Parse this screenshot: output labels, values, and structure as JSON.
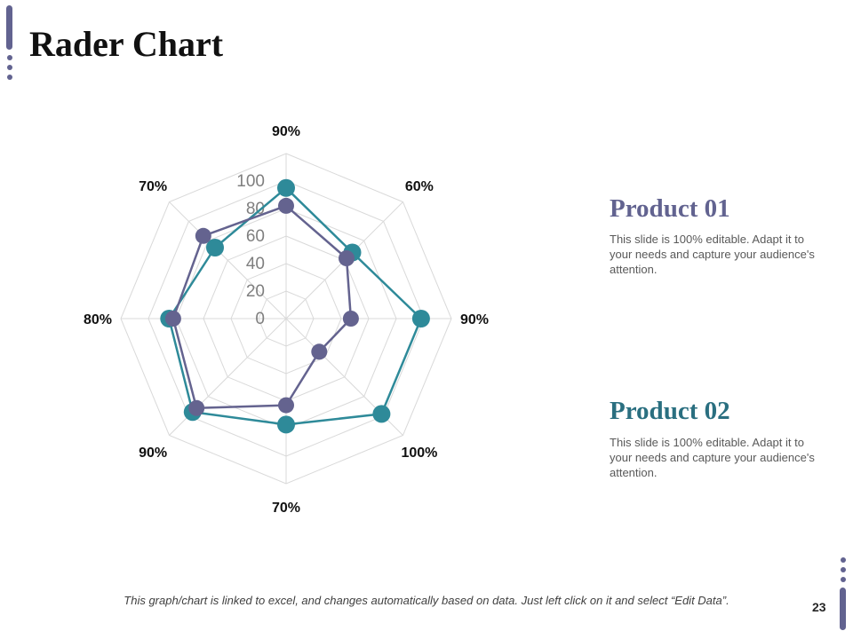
{
  "slide": {
    "title": "Rader Chart",
    "footnote": "This graph/chart is linked to excel, and changes automatically based on data. Just left click on it and select “Edit Data”.",
    "page_number": "23"
  },
  "products": [
    {
      "title": "Product 01",
      "description": "This slide is 100% editable. Adapt it to your needs and capture your audience's attention.",
      "color": "#626390"
    },
    {
      "title": "Product 02",
      "description": "This slide is 100% editable. Adapt it to your needs and capture your audience's attention.",
      "color": "#2A6F80"
    }
  ],
  "colors": {
    "accent": "#626390",
    "grid": "#D9D9D9",
    "series_teal": "#2E8A99",
    "series_purple": "#64638F"
  },
  "chart_data": {
    "type": "radar",
    "categories": [
      "90%",
      "60%",
      "90%",
      "100%",
      "70%",
      "90%",
      "80%",
      "70%"
    ],
    "radial_ticks": [
      "0",
      "20",
      "40",
      "60",
      "80",
      "100"
    ],
    "rlim": [
      0,
      100
    ],
    "grid": true,
    "series": [
      {
        "color": "#2E8A99",
        "values": [
          95,
          68,
          98,
          98,
          77,
          96,
          85,
          73
        ]
      },
      {
        "color": "#64638F",
        "values": [
          82,
          62,
          47,
          34,
          63,
          92,
          82,
          85
        ]
      }
    ]
  }
}
